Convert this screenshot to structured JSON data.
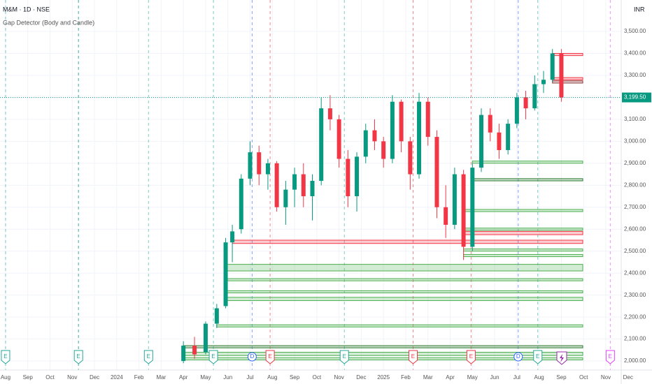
{
  "chart_data": {
    "type": "candlestick",
    "title": "M&M · 1D · NSE",
    "subtitle": "Gap Detector (Body and Candle)",
    "currency": "INR",
    "up_color": "#089981",
    "down_color": "#f23645",
    "grid": true,
    "ylim": [
      1959,
      3643
    ],
    "yticks": [
      {
        "value": 2000,
        "label": "2,000.00"
      },
      {
        "value": 2100,
        "label": "2,100.00"
      },
      {
        "value": 2200,
        "label": "2,200.00"
      },
      {
        "value": 2300,
        "label": "2,300.00"
      },
      {
        "value": 2400,
        "label": "2,400.00"
      },
      {
        "value": 2500,
        "label": "2,500.00"
      },
      {
        "value": 2600,
        "label": "2,600.00"
      },
      {
        "value": 2700,
        "label": "2,700.00"
      },
      {
        "value": 2800,
        "label": "2,800.00"
      },
      {
        "value": 2900,
        "label": "2,900.00"
      },
      {
        "value": 3000,
        "label": "3,000.00"
      },
      {
        "value": 3100,
        "label": "3,100.00"
      },
      {
        "value": 3200,
        "label": "3,200.00"
      },
      {
        "value": 3300,
        "label": "3,300.00"
      },
      {
        "value": 3400,
        "label": "3,400.00"
      },
      {
        "value": 3500,
        "label": "3,500.00"
      }
    ],
    "xlim": [
      -0.25,
      28.7
    ],
    "xticks": [
      {
        "value": 0,
        "label": "Aug"
      },
      {
        "value": 1,
        "label": "Sep"
      },
      {
        "value": 2,
        "label": "Oct"
      },
      {
        "value": 3,
        "label": "Nov"
      },
      {
        "value": 4,
        "label": "Dec"
      },
      {
        "value": 5,
        "label": "2024"
      },
      {
        "value": 6,
        "label": "Feb"
      },
      {
        "value": 7,
        "label": "Mar"
      },
      {
        "value": 8,
        "label": "Apr"
      },
      {
        "value": 9,
        "label": "May"
      },
      {
        "value": 10,
        "label": "Jun"
      },
      {
        "value": 11,
        "label": "Jul"
      },
      {
        "value": 12,
        "label": "Aug"
      },
      {
        "value": 13,
        "label": "Sep"
      },
      {
        "value": 14,
        "label": "Oct"
      },
      {
        "value": 15,
        "label": "Nov"
      },
      {
        "value": 16,
        "label": "Dec"
      },
      {
        "value": 17,
        "label": "2025"
      },
      {
        "value": 18,
        "label": "Feb"
      },
      {
        "value": 19,
        "label": "Mar"
      },
      {
        "value": 20,
        "label": "Apr"
      },
      {
        "value": 21,
        "label": "May"
      },
      {
        "value": 22,
        "label": "Jun"
      },
      {
        "value": 23,
        "label": "Jul"
      },
      {
        "value": 24,
        "label": "Aug"
      },
      {
        "value": 25,
        "label": "Sep"
      },
      {
        "value": 26,
        "label": "Oct"
      },
      {
        "value": 27,
        "label": "Nov"
      },
      {
        "value": 28,
        "label": "Dec"
      }
    ],
    "candles": {
      "x": [
        8.0,
        8.5,
        9.0,
        9.5,
        9.9,
        10.2,
        10.6,
        11.0,
        11.4,
        11.8,
        12.2,
        12.6,
        13.0,
        13.4,
        13.8,
        14.2,
        14.6,
        15.0,
        15.4,
        15.8,
        16.2,
        16.6,
        17.0,
        17.4,
        17.8,
        18.2,
        18.6,
        19.0,
        19.4,
        19.8,
        20.2,
        20.6,
        21.0,
        21.4,
        21.8,
        22.2,
        22.6,
        23.0,
        23.4,
        23.8,
        24.2,
        24.6,
        25.0
      ],
      "open": [
        2000,
        2070,
        2040,
        2170,
        2250,
        2540,
        2600,
        2830,
        2950,
        2850,
        2900,
        2700,
        2780,
        2850,
        2750,
        2820,
        3150,
        3100,
        2920,
        2750,
        2930,
        3050,
        3000,
        2920,
        3180,
        3000,
        2850,
        3180,
        3020,
        2700,
        2620,
        2850,
        2520,
        2880,
        3120,
        3040,
        2960,
        3080,
        3200,
        3150,
        3260,
        3280,
        3400
      ],
      "high": [
        2090,
        2110,
        2180,
        2260,
        2560,
        2620,
        2850,
        3000,
        2980,
        2920,
        2910,
        2820,
        2880,
        2900,
        2850,
        3200,
        3210,
        3120,
        2960,
        2950,
        3080,
        3100,
        3020,
        3210,
        3190,
        3020,
        3220,
        3200,
        3050,
        2800,
        2880,
        2870,
        2900,
        3150,
        3150,
        3080,
        3100,
        3220,
        3230,
        3300,
        3320,
        3420,
        3420
      ],
      "low": [
        1990,
        2010,
        2030,
        2150,
        2240,
        2450,
        2580,
        2800,
        2800,
        2780,
        2680,
        2620,
        2700,
        2700,
        2640,
        2800,
        3050,
        2880,
        2700,
        2680,
        2900,
        2960,
        2880,
        2900,
        2950,
        2780,
        2830,
        2980,
        2650,
        2560,
        2600,
        2460,
        2500,
        2860,
        3000,
        2920,
        2940,
        3060,
        3100,
        3140,
        3220,
        3270,
        3180
      ],
      "close": [
        2070,
        2030,
        2170,
        2240,
        2540,
        2590,
        2830,
        2950,
        2850,
        2900,
        2700,
        2780,
        2850,
        2750,
        2820,
        3150,
        3100,
        2920,
        2750,
        2930,
        3050,
        3000,
        2920,
        3180,
        3000,
        2850,
        3180,
        3020,
        2700,
        2620,
        2850,
        2520,
        2880,
        3120,
        3040,
        2960,
        3080,
        3200,
        3150,
        3260,
        3280,
        3400,
        3199.5
      ]
    },
    "gaps": [
      {
        "x": 24.6,
        "top": 3400,
        "bottom": 3390,
        "color": "#f23645"
      },
      {
        "x": 24.6,
        "top": 3290,
        "bottom": 3280,
        "color": "#f23645"
      },
      {
        "x": 24.6,
        "top": 3275,
        "bottom": 3265,
        "color": "#8b3a3a"
      },
      {
        "x": 21.0,
        "top": 2910,
        "bottom": 2900,
        "color": "#4caf50"
      },
      {
        "x": 21.0,
        "top": 2830,
        "bottom": 2820,
        "color": "#2e7d32"
      },
      {
        "x": 20.6,
        "top": 2690,
        "bottom": 2680,
        "color": "#4caf50"
      },
      {
        "x": 20.6,
        "top": 2605,
        "bottom": 2595,
        "color": "#4caf50"
      },
      {
        "x": 20.6,
        "top": 2590,
        "bottom": 2575,
        "color": "#f23645"
      },
      {
        "x": 10.2,
        "top": 2550,
        "bottom": 2535,
        "color": "#f23645"
      },
      {
        "x": 20.6,
        "top": 2510,
        "bottom": 2500,
        "color": "#4caf50"
      },
      {
        "x": 20.6,
        "top": 2485,
        "bottom": 2475,
        "color": "#4caf50"
      },
      {
        "x": 9.9,
        "top": 2440,
        "bottom": 2410,
        "color": "#4caf50"
      },
      {
        "x": 9.9,
        "top": 2375,
        "bottom": 2365,
        "color": "#4caf50"
      },
      {
        "x": 9.9,
        "top": 2320,
        "bottom": 2310,
        "color": "#4caf50"
      },
      {
        "x": 9.9,
        "top": 2290,
        "bottom": 2275,
        "color": "#4caf50"
      },
      {
        "x": 9.5,
        "top": 2165,
        "bottom": 2155,
        "color": "#4caf50"
      },
      {
        "x": 8.0,
        "top": 2070,
        "bottom": 2060,
        "color": "#2e7d32"
      },
      {
        "x": 8.0,
        "top": 2040,
        "bottom": 2025,
        "color": "#4caf50"
      },
      {
        "x": 8.0,
        "top": 2015,
        "bottom": 2005,
        "color": "#4caf50"
      }
    ],
    "events": [
      {
        "x": 0.0,
        "label": "E",
        "color": "#26a69a"
      },
      {
        "x": 3.28,
        "label": null,
        "color": "#26a69a"
      },
      {
        "x": 6.43,
        "label": "E",
        "color": "#26a69a"
      },
      {
        "x": 3.28,
        "label": "E",
        "color": "#26a69a"
      },
      {
        "x": 9.35,
        "label": "E",
        "color": "#26a69a"
      },
      {
        "x": 11.09,
        "label": "D",
        "color": "#2962ff"
      },
      {
        "x": 11.9,
        "label": "E",
        "color": "#f23645"
      },
      {
        "x": 15.24,
        "label": "E",
        "color": "#26a69a"
      },
      {
        "x": 18.33,
        "label": "E",
        "color": "#f23645"
      },
      {
        "x": 20.94,
        "label": "E",
        "color": "#f23645"
      },
      {
        "x": 23.06,
        "label": "D",
        "color": "#2962ff"
      },
      {
        "x": 23.94,
        "label": "E",
        "color": "#26a69a"
      },
      {
        "x": 27.2,
        "label": "E",
        "color": "#e040fb"
      }
    ],
    "last_price": {
      "value": 3199.5,
      "label": "3,199.50"
    }
  }
}
